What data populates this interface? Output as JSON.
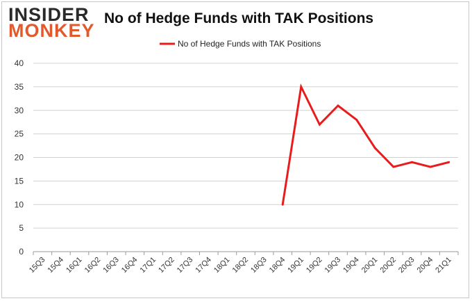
{
  "logo": {
    "line1": "INSIDER",
    "line2": "MONKEY",
    "color_dark": "#2a2a2a",
    "color_accent": "#e25a2c"
  },
  "chart_data": {
    "type": "line",
    "title": "No of Hedge Funds with TAK Positions",
    "xlabel": "",
    "ylabel": "",
    "ylim": [
      0,
      40
    ],
    "yticks": [
      0,
      5,
      10,
      15,
      20,
      25,
      30,
      35,
      40
    ],
    "grid": true,
    "legend_placement": "top-center",
    "categories": [
      "15Q3",
      "15Q4",
      "16Q1",
      "16Q2",
      "16Q3",
      "16Q4",
      "17Q1",
      "17Q2",
      "17Q3",
      "17Q4",
      "18Q1",
      "18Q2",
      "18Q3",
      "18Q4",
      "19Q1",
      "19Q2",
      "19Q3",
      "19Q4",
      "20Q1",
      "20Q2",
      "20Q3",
      "20Q4",
      "21Q1"
    ],
    "series": [
      {
        "name": "No of Hedge Funds with TAK Positions",
        "color": "#e81c1c",
        "values": [
          null,
          null,
          null,
          null,
          null,
          null,
          null,
          null,
          null,
          null,
          null,
          null,
          null,
          10,
          35,
          27,
          31,
          28,
          22,
          18,
          19,
          18,
          19
        ]
      }
    ]
  }
}
